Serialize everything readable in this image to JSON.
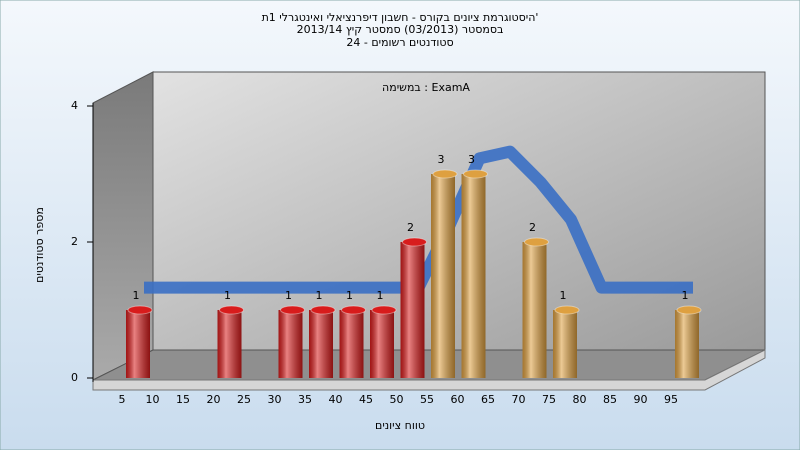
{
  "chart_data": {
    "type": "bar",
    "title": [
      "היסטוגרמת ציונים בקורס - חשבון דיפרנציאלי ואינטגרלי 1ת'",
      "בסמסטר  (03/2013)  סמסטר קיץ 2013/14",
      "סטודנטים רשומים - 24"
    ],
    "annotation": "במשימה : ExamA",
    "x_label": "טווח ציונים",
    "y_label": "מספר סטודנטים",
    "categories": [
      5,
      10,
      15,
      20,
      25,
      30,
      35,
      40,
      45,
      50,
      55,
      60,
      65,
      70,
      75,
      80,
      85,
      90,
      95
    ],
    "values": [
      1,
      0,
      0,
      1,
      0,
      1,
      1,
      1,
      1,
      2,
      3,
      3,
      0,
      2,
      1,
      0,
      0,
      0,
      1
    ],
    "colors": [
      "#d81c1c",
      "#d81c1c",
      "#d81c1c",
      "#d81c1c",
      "#d81c1c",
      "#d81c1c",
      "#d81c1c",
      "#d81c1c",
      "#d81c1c",
      "#d81c1c",
      "#dea040",
      "#dea040",
      "#dea040",
      "#dea040",
      "#dea040",
      "#dea040",
      "#dea040",
      "#dea040",
      "#dea040"
    ],
    "trend": [
      1.3,
      1.3,
      1.3,
      1.3,
      1.3,
      1.3,
      1.3,
      1.3,
      1.3,
      1.3,
      2.2,
      3.2,
      3.3,
      2.85,
      2.3,
      1.3,
      1.3,
      1.3,
      1.3
    ],
    "trend_color": "#3a6fc4",
    "ylim": [
      0,
      4
    ],
    "yticks": [
      0,
      2,
      4
    ]
  }
}
